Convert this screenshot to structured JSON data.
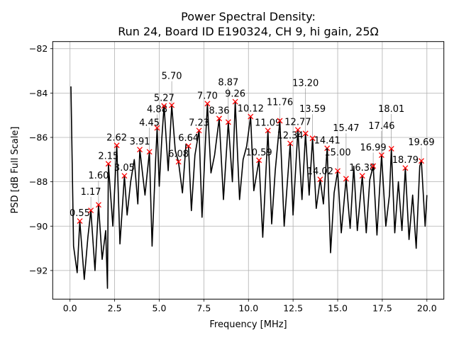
{
  "chart_data": {
    "type": "line",
    "title": "Power Spectral Density:",
    "subtitle": "Run 24, Board ID E190324, CH 9, hi gain, 25Ω",
    "xlabel": "Frequency [MHz]",
    "ylabel": "PSD [dB Full Scale]",
    "xlim": [
      -0.97,
      20.95
    ],
    "ylim": [
      -93.29,
      -81.68
    ],
    "xticks": [
      0.0,
      2.5,
      5.0,
      7.5,
      10.0,
      12.5,
      15.0,
      17.5,
      20.0
    ],
    "xtick_labels": [
      "0.0",
      "2.5",
      "5.0",
      "7.5",
      "10.0",
      "12.5",
      "15.0",
      "17.5",
      "20.0"
    ],
    "yticks": [
      -92,
      -90,
      -88,
      -86,
      -84,
      -82
    ],
    "ytick_labels": [
      "−92",
      "−90",
      "−88",
      "−86",
      "−84",
      "−82"
    ],
    "grid": true,
    "line_color": "#000000",
    "marker_color": "#ff0000",
    "series": [
      {
        "x": [
          0.05,
          0.2,
          0.4,
          0.55,
          0.8,
          1.0,
          1.17,
          1.4,
          1.6,
          1.8,
          2.0,
          2.1,
          2.15,
          2.4,
          2.62,
          2.8,
          3.05,
          3.2,
          3.4,
          3.6,
          3.8,
          3.91,
          4.2,
          4.45,
          4.6,
          4.8,
          4.88,
          5.0,
          5.15,
          5.27,
          5.5,
          5.7,
          5.9,
          6.08,
          6.3,
          6.5,
          6.64,
          6.8,
          7.0,
          7.23,
          7.4,
          7.6,
          7.7,
          7.9,
          8.1,
          8.36,
          8.6,
          8.87,
          9.1,
          9.26,
          9.5,
          9.7,
          9.9,
          10.12,
          10.3,
          10.59,
          10.8,
          11.09,
          11.3,
          11.5,
          11.76,
          12.0,
          12.34,
          12.5,
          12.77,
          13.0,
          13.2,
          13.4,
          13.59,
          13.8,
          14.02,
          14.2,
          14.41,
          14.6,
          14.8,
          15.0,
          15.2,
          15.47,
          15.7,
          15.9,
          16.1,
          16.38,
          16.6,
          16.8,
          16.99,
          17.2,
          17.46,
          17.7,
          17.9,
          18.01,
          18.2,
          18.4,
          18.6,
          18.79,
          19.0,
          19.2,
          19.4,
          19.6,
          19.69,
          19.9,
          20.0
        ],
        "y": [
          -83.7,
          -90.9,
          -92.1,
          -89.77,
          -92.4,
          -90.5,
          -89.29,
          -92.0,
          -89.04,
          -91.5,
          -90.2,
          -92.8,
          -87.19,
          -90.0,
          -86.36,
          -90.8,
          -87.73,
          -89.5,
          -88.0,
          -87.0,
          -89.0,
          -86.55,
          -88.6,
          -86.65,
          -90.9,
          -87.0,
          -85.57,
          -88.2,
          -86.0,
          -84.58,
          -87.5,
          -84.55,
          -86.6,
          -87.1,
          -88.5,
          -86.3,
          -86.39,
          -89.3,
          -86.8,
          -85.69,
          -89.6,
          -86.0,
          -84.48,
          -87.6,
          -86.8,
          -85.15,
          -88.8,
          -85.31,
          -88.0,
          -84.39,
          -88.8,
          -87.0,
          -86.4,
          -85.06,
          -88.4,
          -87.03,
          -90.5,
          -85.69,
          -89.9,
          -87.5,
          -85.25,
          -90.0,
          -86.27,
          -89.5,
          -85.66,
          -88.8,
          -85.82,
          -88.6,
          -86.04,
          -89.2,
          -87.89,
          -89.0,
          -86.49,
          -91.2,
          -88.5,
          -87.51,
          -90.3,
          -87.86,
          -90.1,
          -87.3,
          -90.2,
          -87.73,
          -90.3,
          -87.9,
          -87.29,
          -90.4,
          -86.8,
          -90.0,
          -88.6,
          -86.51,
          -90.3,
          -88.0,
          -90.2,
          -87.38,
          -90.6,
          -88.6,
          -91.0,
          -87.3,
          -87.06,
          -90.0,
          -88.6
        ]
      }
    ],
    "peaks": [
      {
        "label": "0.55",
        "x": 0.55,
        "y": -89.77
      },
      {
        "label": "1.17",
        "x": 1.17,
        "y": -89.29
      },
      {
        "label": "1.60",
        "x": 1.6,
        "y": -89.04
      },
      {
        "label": "2.15",
        "x": 2.15,
        "y": -87.19
      },
      {
        "label": "2.62",
        "x": 2.62,
        "y": -86.36
      },
      {
        "label": "3.05",
        "x": 3.05,
        "y": -87.73
      },
      {
        "label": "3.91",
        "x": 3.91,
        "y": -86.55
      },
      {
        "label": "4.45",
        "x": 4.45,
        "y": -86.65
      },
      {
        "label": "4.88",
        "x": 4.88,
        "y": -85.57
      },
      {
        "label": "5.27",
        "x": 5.27,
        "y": -84.58
      },
      {
        "label": "5.70",
        "x": 5.7,
        "y": -84.55
      },
      {
        "label": "6.08",
        "x": 6.08,
        "y": -87.1
      },
      {
        "label": "6.64",
        "x": 6.64,
        "y": -86.39
      },
      {
        "label": "7.23",
        "x": 7.23,
        "y": -85.69
      },
      {
        "label": "7.70",
        "x": 7.7,
        "y": -84.48
      },
      {
        "label": "8.36",
        "x": 8.36,
        "y": -85.15
      },
      {
        "label": "8.87",
        "x": 8.87,
        "y": -85.31
      },
      {
        "label": "9.26",
        "x": 9.26,
        "y": -84.39
      },
      {
        "label": "10.12",
        "x": 10.12,
        "y": -85.06
      },
      {
        "label": "10.59",
        "x": 10.59,
        "y": -87.03
      },
      {
        "label": "11.09",
        "x": 11.09,
        "y": -85.69
      },
      {
        "label": "11.76",
        "x": 11.76,
        "y": -85.25
      },
      {
        "label": "12.34",
        "x": 12.34,
        "y": -86.27
      },
      {
        "label": "12.77",
        "x": 12.77,
        "y": -85.66
      },
      {
        "label": "13.20",
        "x": 13.2,
        "y": -85.82
      },
      {
        "label": "13.59",
        "x": 13.59,
        "y": -86.04
      },
      {
        "label": "14.02",
        "x": 14.02,
        "y": -87.89
      },
      {
        "label": "14.41",
        "x": 14.41,
        "y": -86.49
      },
      {
        "label": "15.00",
        "x": 15.0,
        "y": -87.51
      },
      {
        "label": "15.47",
        "x": 15.47,
        "y": -87.86
      },
      {
        "label": "16.38",
        "x": 16.38,
        "y": -87.73
      },
      {
        "label": "16.99",
        "x": 16.99,
        "y": -87.29
      },
      {
        "label": "17.46",
        "x": 17.46,
        "y": -86.8
      },
      {
        "label": "18.01",
        "x": 18.01,
        "y": -86.51
      },
      {
        "label": "18.79",
        "x": 18.79,
        "y": -87.38
      },
      {
        "label": "19.69",
        "x": 19.69,
        "y": -87.06
      }
    ]
  }
}
